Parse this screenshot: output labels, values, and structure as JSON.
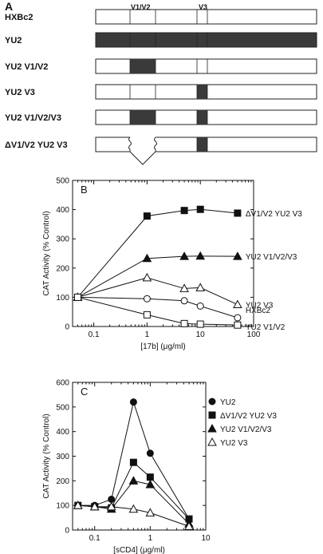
{
  "panel_a": {
    "letter": "A",
    "region_labels": [
      "V1/V2",
      "V3"
    ],
    "constructs": [
      {
        "label": "HXBc2",
        "shaded": [],
        "deleted": false
      },
      {
        "label": "YU2",
        "shaded": [
          "full"
        ],
        "deleted": false
      },
      {
        "label": "YU2 V1/V2",
        "shaded": [
          "v1v2"
        ],
        "deleted": false
      },
      {
        "label": "YU2 V3",
        "shaded": [
          "v3"
        ],
        "deleted": false
      },
      {
        "label": "YU2 V1/V2/V3",
        "shaded": [
          "v1v2",
          "v3"
        ],
        "deleted": false
      },
      {
        "label": "ΔV1/V2 YU2 V3",
        "shaded": [
          "v3"
        ],
        "deleted": true
      }
    ],
    "colors": {
      "shade": "#3a3a3a",
      "outline": "#222222"
    }
  },
  "chart_data": [
    {
      "type": "line",
      "panel": "B",
      "xlabel": "[17b] (μg/ml)",
      "ylabel": "CAT Activity (% Control)",
      "xscale": "log",
      "xlim": [
        0.04,
        100
      ],
      "ylim": [
        0,
        500
      ],
      "xticks": [
        0.1,
        1,
        10,
        100
      ],
      "xtick_labels": [
        "0.1",
        "1",
        "10",
        "100"
      ],
      "yticks": [
        0,
        100,
        200,
        300,
        400,
        500
      ],
      "ytick_labels": [
        "0",
        "100",
        "200",
        "300",
        "400",
        "500"
      ],
      "legend": "series labels at right end of each line",
      "series": [
        {
          "name": "ΔV1/V2 YU2 V3",
          "marker": "filled-square",
          "x": [
            0.05,
            1,
            5,
            10,
            50
          ],
          "y": [
            100,
            378,
            397,
            401,
            388
          ]
        },
        {
          "name": "YU2 V1/V2/V3",
          "marker": "filled-triangle",
          "x": [
            0.05,
            1,
            5,
            10,
            50
          ],
          "y": [
            100,
            233,
            240,
            241,
            240
          ]
        },
        {
          "name": "YU2 V3",
          "marker": "open-triangle",
          "x": [
            0.05,
            1,
            5,
            10,
            50
          ],
          "y": [
            100,
            167,
            130,
            133,
            75
          ]
        },
        {
          "name": "HXBc2",
          "marker": "open-circle",
          "x": [
            0.05,
            1,
            5,
            10,
            50
          ],
          "y": [
            100,
            95,
            88,
            70,
            30
          ]
        },
        {
          "name": "YU2 V1/V2",
          "marker": "open-square",
          "x": [
            0.05,
            1,
            5,
            10,
            50
          ],
          "y": [
            100,
            40,
            10,
            8,
            5
          ]
        }
      ]
    },
    {
      "type": "line",
      "panel": "C",
      "xlabel": "[sCD4] (μg/ml)",
      "ylabel": "CAT Activity (% Control)",
      "xscale": "log",
      "xlim": [
        0.04,
        10
      ],
      "ylim": [
        0,
        600
      ],
      "xticks": [
        0.1,
        1,
        10
      ],
      "xtick_labels": [
        "0.1",
        "1",
        "10"
      ],
      "yticks": [
        0,
        100,
        200,
        300,
        400,
        500,
        600
      ],
      "ytick_labels": [
        "0",
        "100",
        "200",
        "300",
        "400",
        "500",
        "600"
      ],
      "legend": "top-right",
      "series": [
        {
          "name": "YU2",
          "marker": "filled-circle",
          "x": [
            0.05,
            0.1,
            0.2,
            0.5,
            1,
            5
          ],
          "y": [
            100,
            100,
            125,
            520,
            312,
            45
          ]
        },
        {
          "name": "ΔV1/V2 YU2 V3",
          "marker": "filled-square",
          "x": [
            0.05,
            0.1,
            0.2,
            0.5,
            1,
            5
          ],
          "y": [
            100,
            95,
            90,
            275,
            215,
            45
          ]
        },
        {
          "name": "YU2 V1/V2/V3",
          "marker": "filled-triangle",
          "x": [
            0.05,
            0.1,
            0.2,
            0.5,
            1,
            5
          ],
          "y": [
            100,
            95,
            85,
            200,
            185,
            25
          ]
        },
        {
          "name": "YU2 V3",
          "marker": "open-triangle",
          "x": [
            0.05,
            0.1,
            0.2,
            0.5,
            1,
            5
          ],
          "y": [
            100,
            95,
            95,
            85,
            70,
            15
          ]
        }
      ]
    }
  ]
}
